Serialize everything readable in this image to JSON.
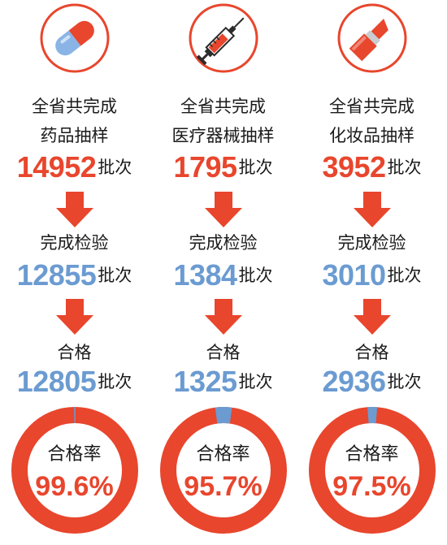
{
  "colors": {
    "accent_red": "#e8462d",
    "accent_blue": "#6b9bd1",
    "text": "#1a1a1a"
  },
  "columns": [
    {
      "icon": "pill-capsule-icon",
      "line1": "全省共完成",
      "line2": "药品抽样",
      "sampled": "14952",
      "sampled_unit": "批次",
      "inspected_label": "完成检验",
      "inspected": "12855",
      "inspected_unit": "批次",
      "passed_label": "合格",
      "passed": "12805",
      "passed_unit": "批次",
      "rate_label": "合格率",
      "rate": "99.6%",
      "rate_value": 99.6
    },
    {
      "icon": "syringe-icon",
      "line1": "全省共完成",
      "line2": "医疗器械抽样",
      "sampled": "1795",
      "sampled_unit": "批次",
      "inspected_label": "完成检验",
      "inspected": "1384",
      "inspected_unit": "批次",
      "passed_label": "合格",
      "passed": "1325",
      "passed_unit": "批次",
      "rate_label": "合格率",
      "rate": "95.7%",
      "rate_value": 95.7
    },
    {
      "icon": "lipstick-icon",
      "line1": "全省共完成",
      "line2": "化妆品抽样",
      "sampled": "3952",
      "sampled_unit": "批次",
      "inspected_label": "完成检验",
      "inspected": "3010",
      "inspected_unit": "批次",
      "passed_label": "合格",
      "passed": "2936",
      "passed_unit": "批次",
      "rate_label": "合格率",
      "rate": "97.5%",
      "rate_value": 97.5
    }
  ]
}
